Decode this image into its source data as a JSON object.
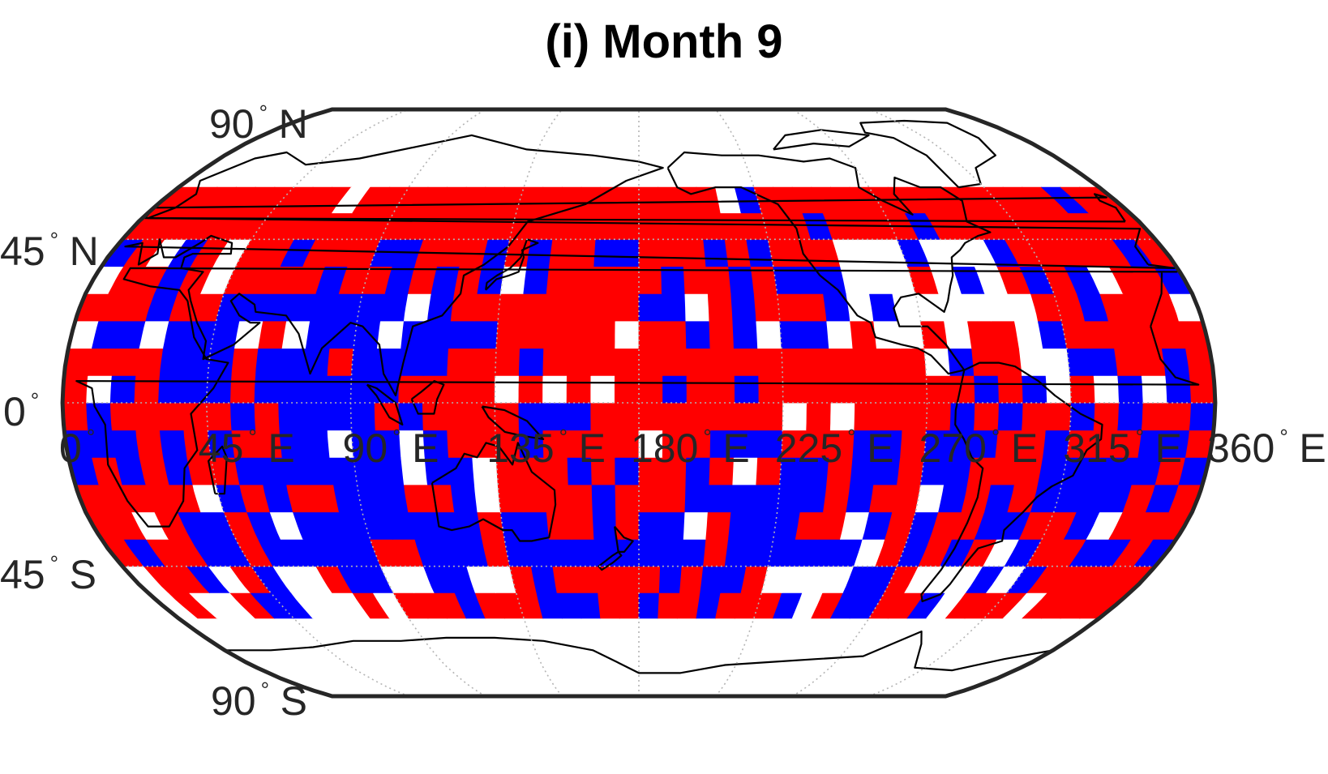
{
  "title": "(i) Month 9",
  "map": {
    "projection": "Robinson",
    "colors": {
      "positive": "#ff0000",
      "negative": "#0000ff",
      "missing": "#ffffff",
      "frame": "#262626",
      "grid": "#b4b4b4",
      "coast": "#000000"
    },
    "lat_labels": [
      {
        "text": "90",
        "suffix": "N",
        "lat": 90
      },
      {
        "text": "45",
        "suffix": "N",
        "lat": 45
      },
      {
        "text": "0",
        "suffix": "",
        "lat": 0
      },
      {
        "text": "45",
        "suffix": "S",
        "lat": -45
      },
      {
        "text": "90",
        "suffix": "S",
        "lat": -90
      }
    ],
    "lon_labels": [
      {
        "text": "0",
        "suffix": "",
        "lon": 0
      },
      {
        "text": "45",
        "suffix": "E",
        "lon": 45
      },
      {
        "text": "90",
        "suffix": "E",
        "lon": 90
      },
      {
        "text": "135",
        "suffix": "E",
        "lon": 135
      },
      {
        "text": "180",
        "suffix": "E",
        "lon": 180
      },
      {
        "text": "225",
        "suffix": "E",
        "lon": 225
      },
      {
        "text": "270",
        "suffix": "E",
        "lon": 270
      },
      {
        "text": "315",
        "suffix": "E",
        "lon": 315
      },
      {
        "text": "360",
        "suffix": "E",
        "lon": 360
      }
    ],
    "grid_lats": [
      -45,
      0,
      45
    ],
    "grid_lons": [
      45,
      90,
      135,
      180,
      225,
      270,
      315
    ],
    "cell_size_deg": 7.5,
    "lat_range": [
      -60,
      60
    ]
  }
}
